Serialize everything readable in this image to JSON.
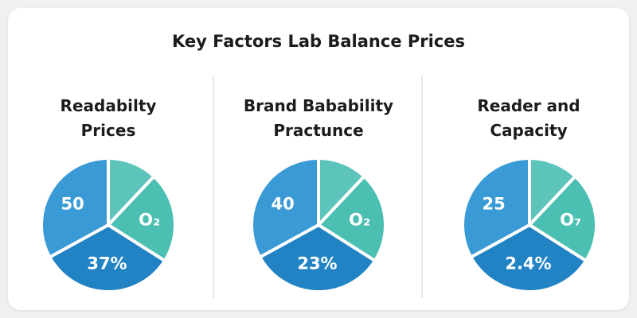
{
  "title": "Key Factors Lab Balance Prices",
  "colors": [
    "#5cc4bb",
    "#4bbfb2",
    "#2182c4",
    "#3a9ad6"
  ],
  "chart_data": [
    {
      "type": "pie",
      "title_lines": [
        "Readabilty",
        "Prices"
      ],
      "values": [
        12,
        22,
        33,
        33
      ],
      "labels": [
        "",
        "O₂",
        "37%",
        "50"
      ]
    },
    {
      "type": "pie",
      "title_lines": [
        "Brand Babability",
        "Practunce"
      ],
      "values": [
        12,
        22,
        33,
        33
      ],
      "labels": [
        "",
        "O₂",
        "23%",
        "40"
      ]
    },
    {
      "type": "pie",
      "title_lines": [
        "Reader and",
        "Capacity"
      ],
      "values": [
        12,
        22,
        33,
        33
      ],
      "labels": [
        "",
        "O₇",
        "2.4%",
        "25"
      ]
    }
  ]
}
